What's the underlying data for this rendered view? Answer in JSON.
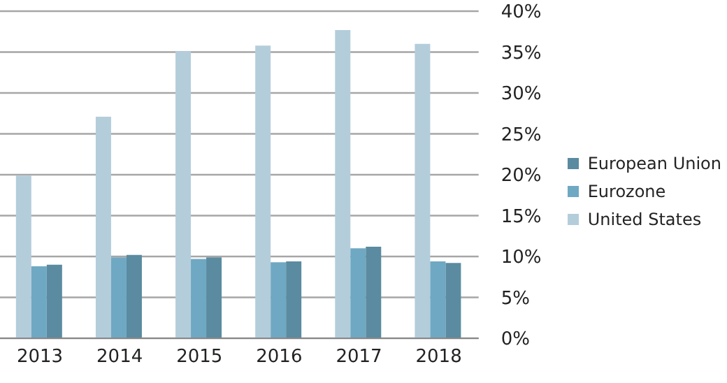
{
  "chart_data": {
    "type": "bar",
    "categories": [
      "2013",
      "2014",
      "2015",
      "2016",
      "2017",
      "2018"
    ],
    "series": [
      {
        "name": "United States",
        "color": "#b4cddb",
        "values": [
          19.9,
          27.1,
          35.1,
          35.8,
          37.7,
          36.0
        ]
      },
      {
        "name": "Eurozone",
        "color": "#6fa8c3",
        "values": [
          8.8,
          9.9,
          9.7,
          9.3,
          11.0,
          9.4
        ]
      },
      {
        "name": "European Union",
        "color": "#5a8ba0",
        "values": [
          9.0,
          10.2,
          9.9,
          9.4,
          11.2,
          9.2
        ]
      }
    ],
    "ylim": [
      0,
      40
    ],
    "yticks": [
      {
        "value": 0,
        "label": "0%"
      },
      {
        "value": 5,
        "label": "5%"
      },
      {
        "value": 10,
        "label": "10%"
      },
      {
        "value": 15,
        "label": "15%"
      },
      {
        "value": 20,
        "label": "20%"
      },
      {
        "value": 25,
        "label": "25%"
      },
      {
        "value": 30,
        "label": "30%"
      },
      {
        "value": 35,
        "label": "35%"
      },
      {
        "value": 40,
        "label": "40%"
      }
    ],
    "grid": "y",
    "legend": "right"
  }
}
